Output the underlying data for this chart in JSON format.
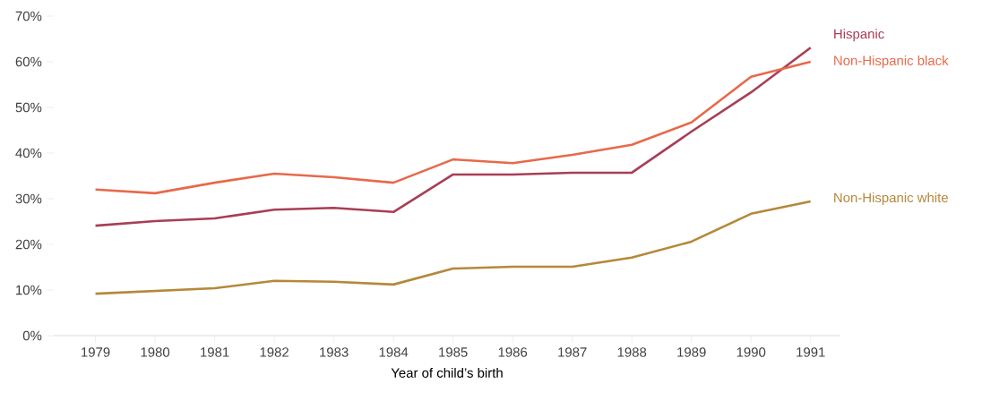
{
  "chart_data": {
    "type": "line",
    "xlabel": "Year of child’s birth",
    "x": [
      1979,
      1980,
      1981,
      1982,
      1983,
      1984,
      1985,
      1986,
      1987,
      1988,
      1989,
      1990,
      1991
    ],
    "xlim": [
      1978.3,
      1991.5
    ],
    "xticks": [
      1979,
      1980,
      1981,
      1982,
      1983,
      1984,
      1985,
      1986,
      1987,
      1988,
      1989,
      1990,
      1991
    ],
    "ylim": [
      0,
      70
    ],
    "yticks": [
      {
        "value": 0,
        "label": "0%"
      },
      {
        "value": 10,
        "label": "10%"
      },
      {
        "value": 20,
        "label": "20%"
      },
      {
        "value": 30,
        "label": "30%"
      },
      {
        "value": 40,
        "label": "40%"
      },
      {
        "value": 50,
        "label": "50%"
      },
      {
        "value": 60,
        "label": "60%"
      },
      {
        "value": 70,
        "label": "70%"
      }
    ],
    "grid": false,
    "series": [
      {
        "name": "Hispanic",
        "color": "#a83e56",
        "values": [
          24.1,
          25.1,
          25.7,
          27.6,
          28.0,
          27.1,
          35.3,
          35.3,
          35.7,
          35.7,
          44.7,
          53.3,
          63.1
        ]
      },
      {
        "name": "Non-Hispanic black",
        "color": "#e8694a",
        "values": [
          32.0,
          31.2,
          33.5,
          35.5,
          34.7,
          33.5,
          38.6,
          37.8,
          39.6,
          41.8,
          46.7,
          56.7,
          60.0
        ]
      },
      {
        "name": "Non-Hispanic white",
        "color": "#b5883a",
        "values": [
          9.2,
          9.8,
          10.4,
          12.0,
          11.8,
          11.2,
          14.7,
          15.1,
          15.1,
          17.1,
          20.6,
          26.7,
          29.4
        ]
      }
    ]
  }
}
